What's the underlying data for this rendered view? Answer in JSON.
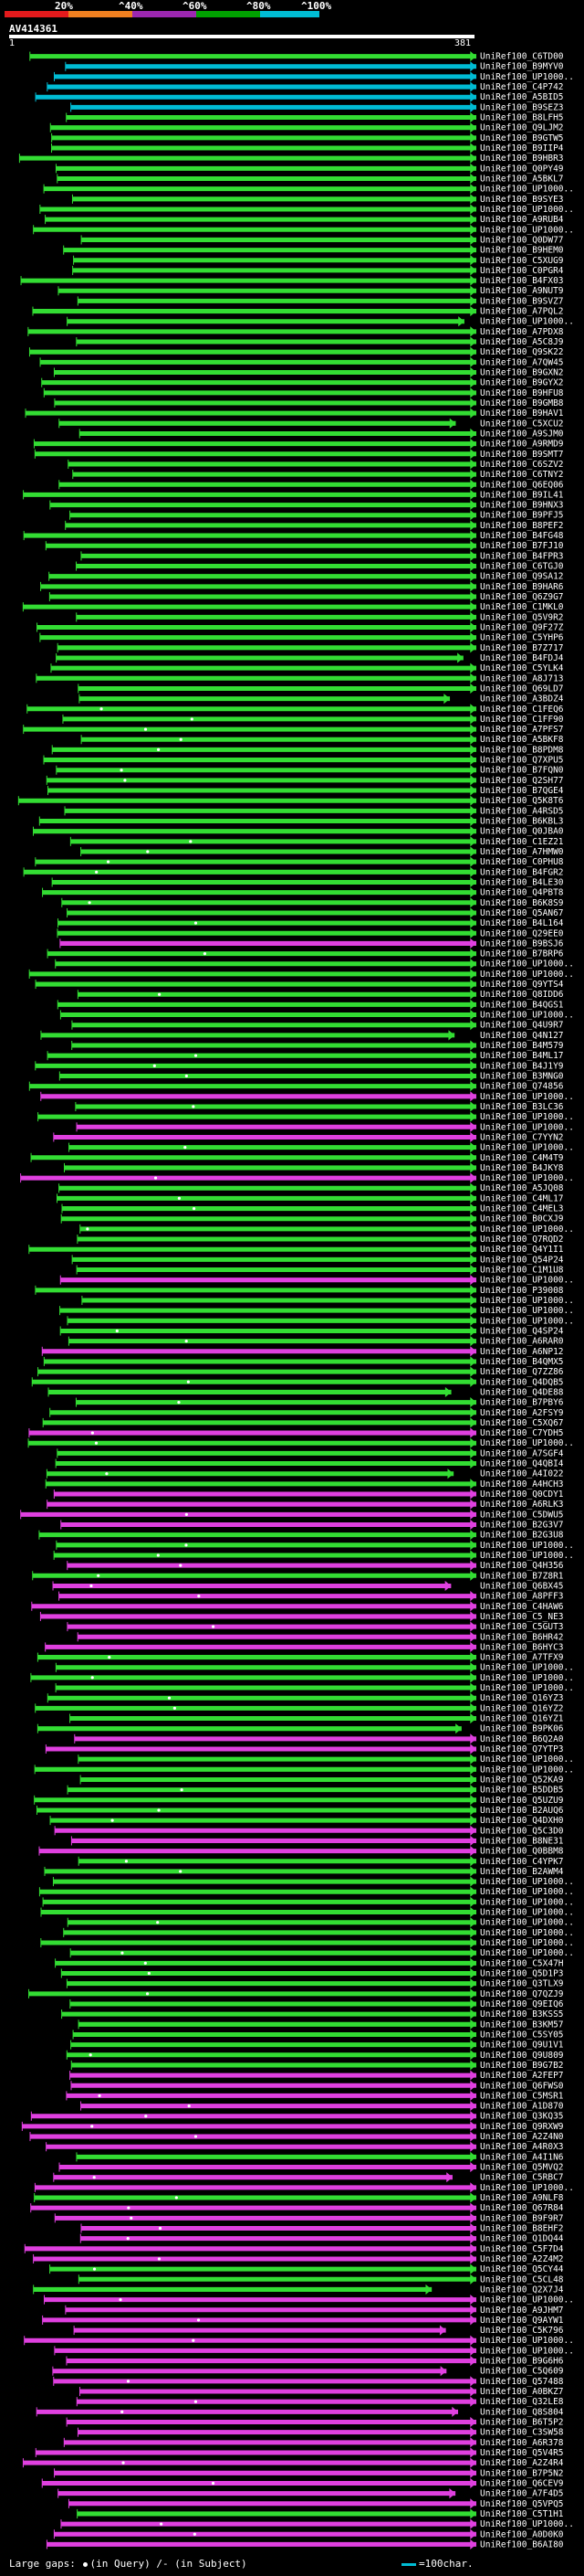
{
  "legend": {
    "labels": [
      "20%",
      "^40%",
      "^60%",
      "^80%",
      "^100%"
    ],
    "colors": [
      "#e41a1c",
      "#f08020",
      "#9c27b0",
      "#00a000",
      "#00bcd4"
    ]
  },
  "query": {
    "id": "AV414361",
    "start": "1",
    "end": "381"
  },
  "footer": {
    "large_gaps": "Large gaps:",
    "gap_query": "(in Query)",
    "gap_subject": "/- (in Subject)",
    "scale": "=100char."
  },
  "hit_color_map": {
    "C": "#00bcd4",
    "G": "#33dd33",
    "M": "#e040e0"
  },
  "hits": [
    [
      "UniRef100_C6TD00",
      "G"
    ],
    [
      "UniRef100_B9MYV0",
      "C"
    ],
    [
      "UniRef100_UP1000..",
      "C"
    ],
    [
      "UniRef100_C4P742",
      "C"
    ],
    [
      "UniRef100_A5BID5",
      "C"
    ],
    [
      "UniRef100_B9SEZ3",
      "C"
    ],
    [
      "UniRef100_B8LFH5",
      "G"
    ],
    [
      "UniRef100_Q9LJM2",
      "G"
    ],
    [
      "UniRef100_B9GTW5",
      "G"
    ],
    [
      "UniRef100_B9IIP4",
      "G"
    ],
    [
      "UniRef100_B9HBR3",
      "G"
    ],
    [
      "UniRef100_Q0PY49",
      "G"
    ],
    [
      "UniRef100_A5BKL7",
      "G"
    ],
    [
      "UniRef100_UP1000..",
      "G"
    ],
    [
      "UniRef100_B9SYE3",
      "G"
    ],
    [
      "UniRef100_UP1000..",
      "G"
    ],
    [
      "UniRef100_A9RUB4",
      "G"
    ],
    [
      "UniRef100_UP1000..",
      "G"
    ],
    [
      "UniRef100_Q0DW77",
      "G"
    ],
    [
      "UniRef100_B9HEM0",
      "G"
    ],
    [
      "UniRef100_C5XUG9",
      "G"
    ],
    [
      "UniRef100_C0PGR4",
      "G"
    ],
    [
      "UniRef100_B4FX03",
      "G"
    ],
    [
      "UniRef100_A9NUT9",
      "G"
    ],
    [
      "UniRef100_B9SVZ7",
      "G"
    ],
    [
      "UniRef100_A7PQL2",
      "G"
    ],
    [
      "UniRef100_UP1000..",
      "G"
    ],
    [
      "UniRef100_A7PDX8",
      "G"
    ],
    [
      "UniRef100_A5C8J9",
      "G"
    ],
    [
      "UniRef100_Q9SK22",
      "G"
    ],
    [
      "UniRef100_A7QW45",
      "G"
    ],
    [
      "UniRef100_B9GXN2",
      "G"
    ],
    [
      "UniRef100_B9GYX2",
      "G"
    ],
    [
      "UniRef100_B9HFU8",
      "G"
    ],
    [
      "UniRef100_B9GMB8",
      "G"
    ],
    [
      "UniRef100_B9HAV1",
      "G"
    ],
    [
      "UniRef100_C5XCU2",
      "G"
    ],
    [
      "UniRef100_A9SJM0",
      "G"
    ],
    [
      "UniRef100_A9RMD9",
      "G"
    ],
    [
      "UniRef100_B9SMT7",
      "G"
    ],
    [
      "UniRef100_C6SZV2",
      "G"
    ],
    [
      "UniRef100_C6TNY2",
      "G"
    ],
    [
      "UniRef100_Q6EQ06",
      "G"
    ],
    [
      "UniRef100_B9IL41",
      "G"
    ],
    [
      "UniRef100_B9HNX3",
      "G"
    ],
    [
      "UniRef100_B9PFJ5",
      "G"
    ],
    [
      "UniRef100_B8PEF2",
      "G"
    ],
    [
      "UniRef100_B4FG48",
      "G"
    ],
    [
      "UniRef100_B7FJ10",
      "G"
    ],
    [
      "UniRef100_B4FPR3",
      "G"
    ],
    [
      "UniRef100_C6TGJ0",
      "G"
    ],
    [
      "UniRef100_Q9SA12",
      "G"
    ],
    [
      "UniRef100_B9HAR6",
      "G"
    ],
    [
      "UniRef100_Q6Z9G7",
      "G"
    ],
    [
      "UniRef100_C1MKL0",
      "G"
    ],
    [
      "UniRef100_Q5V9R2",
      "G"
    ],
    [
      "UniRef100_Q9F27Z",
      "G"
    ],
    [
      "UniRef100_C5YHP6",
      "G"
    ],
    [
      "UniRef100_B7Z717",
      "G"
    ],
    [
      "UniRef100_B4FDJ4",
      "G"
    ],
    [
      "UniRef100_C5YLK4",
      "G"
    ],
    [
      "UniRef100_A8J713",
      "G"
    ],
    [
      "UniRef100_Q69LD7",
      "G"
    ],
    [
      "UniRef100_A3BDZ4",
      "G"
    ],
    [
      "UniRef100_C1FEQ6",
      "G"
    ],
    [
      "UniRef100_C1FF90",
      "G"
    ],
    [
      "UniRef100_A7PFS7",
      "G"
    ],
    [
      "UniRef100_A5BKF8",
      "G"
    ],
    [
      "UniRef100_B8PDM8",
      "G"
    ],
    [
      "UniRef100_Q7XPU5",
      "G"
    ],
    [
      "UniRef100_B7FQN0",
      "G"
    ],
    [
      "UniRef100_Q2SH77",
      "G"
    ],
    [
      "UniRef100_B7QGE4",
      "G"
    ],
    [
      "UniRef100_Q5K8T6",
      "G"
    ],
    [
      "UniRef100_A4RSD5",
      "G"
    ],
    [
      "UniRef100_B6KBL3",
      "G"
    ],
    [
      "UniRef100_Q0JBA0",
      "G"
    ],
    [
      "UniRef100_C1EZ21",
      "G"
    ],
    [
      "UniRef100_A7HMW0",
      "G"
    ],
    [
      "UniRef100_C0PHU8",
      "G"
    ],
    [
      "UniRef100_B4FGR2",
      "G"
    ],
    [
      "UniRef100_B4LE30",
      "G"
    ],
    [
      "UniRef100_Q4PBT8",
      "G"
    ],
    [
      "UniRef100_B6K8S9",
      "G"
    ],
    [
      "UniRef100_Q5AN67",
      "G"
    ],
    [
      "UniRef100_B4L164",
      "G"
    ],
    [
      "UniRef100_Q29EE0",
      "G"
    ],
    [
      "UniRef100_B9BSJ6",
      "M"
    ],
    [
      "UniRef100_B7BRP6",
      "G"
    ],
    [
      "UniRef100_UP1000..",
      "G"
    ],
    [
      "UniRef100_UP1000..",
      "G"
    ],
    [
      "UniRef100_Q9YTS4",
      "G"
    ],
    [
      "UniRef100_Q8IDD6",
      "G"
    ],
    [
      "UniRef100_B4QGS1",
      "G"
    ],
    [
      "UniRef100_UP1000..",
      "G"
    ],
    [
      "UniRef100_Q4U9R7",
      "G"
    ],
    [
      "UniRef100_Q4N127",
      "G"
    ],
    [
      "UniRef100_B4M579",
      "G"
    ],
    [
      "UniRef100_B4ML17",
      "G"
    ],
    [
      "UniRef100_B4J1Y9",
      "G"
    ],
    [
      "UniRef100_B3MNG0",
      "G"
    ],
    [
      "UniRef100_Q74856",
      "G"
    ],
    [
      "UniRef100_UP1000..",
      "M"
    ],
    [
      "UniRef100_B3LC36",
      "G"
    ],
    [
      "UniRef100_UP1000..",
      "G"
    ],
    [
      "UniRef100_UP1000..",
      "M"
    ],
    [
      "UniRef100_C7YYN2",
      "M"
    ],
    [
      "UniRef100_UP1000..",
      "G"
    ],
    [
      "UniRef100_C4M4T9",
      "G"
    ],
    [
      "UniRef100_B4JKY8",
      "G"
    ],
    [
      "UniRef100_UP1000..",
      "M"
    ],
    [
      "UniRef100_A5JQ08",
      "G"
    ],
    [
      "UniRef100_C4ML17",
      "G"
    ],
    [
      "UniRef100_C4MEL3",
      "G"
    ],
    [
      "UniRef100_B0CXJ9",
      "G"
    ],
    [
      "UniRef100_UP1000..",
      "G"
    ],
    [
      "UniRef100_Q7RQD2",
      "G"
    ],
    [
      "UniRef100_Q4Y1I1",
      "G"
    ],
    [
      "UniRef100_Q54P24",
      "G"
    ],
    [
      "UniRef100_C1M1U8",
      "G"
    ],
    [
      "UniRef100_UP1000..",
      "M"
    ],
    [
      "UniRef100_P39008",
      "G"
    ],
    [
      "UniRef100_UP1000..",
      "G"
    ],
    [
      "UniRef100_UP1000..",
      "G"
    ],
    [
      "UniRef100_UP1000..",
      "G"
    ],
    [
      "UniRef100_Q4SP24",
      "G"
    ],
    [
      "UniRef100_A6RAR0",
      "G"
    ],
    [
      "UniRef100_A6NP12",
      "M"
    ],
    [
      "UniRef100_B4QMX5",
      "G"
    ],
    [
      "UniRef100_Q7ZZ86",
      "G"
    ],
    [
      "UniRef100_Q4DQB5",
      "G"
    ],
    [
      "UniRef100_Q4DE88",
      "G"
    ],
    [
      "UniRef100_B7PBY6",
      "G"
    ],
    [
      "UniRef100_A2FSY9",
      "G"
    ],
    [
      "UniRef100_C5XQ67",
      "G"
    ],
    [
      "UniRef100_C7YDH5",
      "M"
    ],
    [
      "UniRef100_UP1000..",
      "G"
    ],
    [
      "UniRef100_A7SGF4",
      "G"
    ],
    [
      "UniRef100_Q4QBI4",
      "G"
    ],
    [
      "UniRef100_A4I022",
      "G"
    ],
    [
      "UniRef100_A4HCH3",
      "G"
    ],
    [
      "UniRef100_Q0CDY1",
      "M"
    ],
    [
      "UniRef100_A6RLK3",
      "M"
    ],
    [
      "UniRef100_C5DWU5",
      "M"
    ],
    [
      "UniRef100_B2G3V7",
      "M"
    ],
    [
      "UniRef100_B2G3U8",
      "G"
    ],
    [
      "UniRef100_UP1000..",
      "G"
    ],
    [
      "UniRef100_UP1000..",
      "G"
    ],
    [
      "UniRef100_Q4H356",
      "M"
    ],
    [
      "UniRef100_B7Z8R1",
      "G"
    ],
    [
      "UniRef100_Q6BX45",
      "M"
    ],
    [
      "UniRef100_A8PFF3",
      "M"
    ],
    [
      "UniRef100_C4HAW6",
      "M"
    ],
    [
      "UniRef100_C5_NE3",
      "M"
    ],
    [
      "UniRef100_C5GUT3",
      "M"
    ],
    [
      "UniRef100_B6HR42",
      "M"
    ],
    [
      "UniRef100_B6HYC3",
      "M"
    ],
    [
      "UniRef100_A7TFX9",
      "G"
    ],
    [
      "UniRef100_UP1000..",
      "G"
    ],
    [
      "UniRef100_UP1000..",
      "G"
    ],
    [
      "UniRef100_UP1000..",
      "G"
    ],
    [
      "UniRef100_Q16YZ3",
      "G"
    ],
    [
      "UniRef100_Q16YZ2",
      "G"
    ],
    [
      "UniRef100_Q16YZ1",
      "G"
    ],
    [
      "UniRef100_B9PK06",
      "G"
    ],
    [
      "UniRef100_B6Q2A0",
      "M"
    ],
    [
      "UniRef100_Q7YTP3",
      "M"
    ],
    [
      "UniRef100_UP1000..",
      "G"
    ],
    [
      "UniRef100_UP1000..",
      "G"
    ],
    [
      "UniRef100_Q52KA9",
      "G"
    ],
    [
      "UniRef100_B5DDB5",
      "G"
    ],
    [
      "UniRef100_Q5UZU9",
      "G"
    ],
    [
      "UniRef100_B2AUQ6",
      "G"
    ],
    [
      "UniRef100_Q4DXH0",
      "G"
    ],
    [
      "UniRef100_Q5C3D0",
      "M"
    ],
    [
      "UniRef100_B8NE31",
      "M"
    ],
    [
      "UniRef100_Q0BBM8",
      "M"
    ],
    [
      "UniRef100_C4YPK7",
      "G"
    ],
    [
      "UniRef100_B2AWM4",
      "G"
    ],
    [
      "UniRef100_UP1000..",
      "G"
    ],
    [
      "UniRef100_UP1000..",
      "G"
    ],
    [
      "UniRef100_UP1000..",
      "G"
    ],
    [
      "UniRef100_UP1000..",
      "G"
    ],
    [
      "UniRef100_UP1000..",
      "G"
    ],
    [
      "UniRef100_UP1000..",
      "G"
    ],
    [
      "UniRef100_UP1000..",
      "G"
    ],
    [
      "UniRef100_UP1000..",
      "G"
    ],
    [
      "UniRef100_C5X47H",
      "G"
    ],
    [
      "UniRef100_Q5D1P3",
      "G"
    ],
    [
      "UniRef100_Q3TLX9",
      "G"
    ],
    [
      "UniRef100_Q7QZJ9",
      "G"
    ],
    [
      "UniRef100_Q9EIQ6",
      "G"
    ],
    [
      "UniRef100_B3KSS5",
      "G"
    ],
    [
      "UniRef100_B3KM57",
      "G"
    ],
    [
      "UniRef100_C5SY05",
      "G"
    ],
    [
      "UniRef100_Q9U1V1",
      "G"
    ],
    [
      "UniRef100_Q9U809",
      "G"
    ],
    [
      "UniRef100_B9G7B2",
      "G"
    ],
    [
      "UniRef100_A2FEP7",
      "M"
    ],
    [
      "UniRef100_Q6FWS0",
      "M"
    ],
    [
      "UniRef100_C5MSR1",
      "M"
    ],
    [
      "UniRef100_A1D870",
      "M"
    ],
    [
      "UniRef100_Q3KQ35",
      "M"
    ],
    [
      "UniRef100_Q9RXW9",
      "M"
    ],
    [
      "UniRef100_A2Z4N0",
      "M"
    ],
    [
      "UniRef100_A4R0X3",
      "M"
    ],
    [
      "UniRef100_A4I1N6",
      "G"
    ],
    [
      "UniRef100_Q5MVQ2",
      "M"
    ],
    [
      "UniRef100_C5RBC7",
      "M"
    ],
    [
      "UniRef100_UP1000..",
      "M"
    ],
    [
      "UniRef100_A9NLF8",
      "G"
    ],
    [
      "UniRef100_Q67R84",
      "M"
    ],
    [
      "UniRef100_B9F9R7",
      "M"
    ],
    [
      "UniRef100_B8EHF2",
      "M"
    ],
    [
      "UniRef100_Q1DQ44",
      "M"
    ],
    [
      "UniRef100_C5F7D4",
      "M"
    ],
    [
      "UniRef100_A2Z4M2",
      "M"
    ],
    [
      "UniRef100_Q5CY44",
      "G"
    ],
    [
      "UniRef100_C5CL48",
      "G"
    ],
    [
      "UniRef100_Q2X7J4",
      "G"
    ],
    [
      "UniRef100_UP1000..",
      "M"
    ],
    [
      "UniRef100_A9JHM7",
      "M"
    ],
    [
      "UniRef100_Q9AYW1",
      "M"
    ],
    [
      "UniRef100_C5K796",
      "M"
    ],
    [
      "UniRef100_UP1000..",
      "M"
    ],
    [
      "UniRef100_UP1000..",
      "M"
    ],
    [
      "UniRef100_B9G6H6",
      "M"
    ],
    [
      "UniRef100_C5Q609",
      "M"
    ],
    [
      "UniRef100_Q57488",
      "M"
    ],
    [
      "UniRef100_A0BKZ7",
      "M"
    ],
    [
      "UniRef100_Q32LE8",
      "M"
    ],
    [
      "UniRef100_Q8S804",
      "M"
    ],
    [
      "UniRef100_B6T5P2",
      "M"
    ],
    [
      "UniRef100_C3SW58",
      "M"
    ],
    [
      "UniRef100_A6R378",
      "M"
    ],
    [
      "UniRef100_Q5V4R5",
      "M"
    ],
    [
      "UniRef100_A2Z4R4",
      "M"
    ],
    [
      "UniRef100_B7P5N2",
      "M"
    ],
    [
      "UniRef100_Q6CEV9",
      "M"
    ],
    [
      "UniRef100_A7F4D5",
      "M"
    ],
    [
      "UniRef100_Q5VPQ5",
      "M"
    ],
    [
      "UniRef100_C5T1H1",
      "G"
    ],
    [
      "UniRef100_UP1000..",
      "M"
    ],
    [
      "UniRef100_A0D0K0",
      "M"
    ],
    [
      "UniRef100_B6AI80",
      "M"
    ]
  ]
}
